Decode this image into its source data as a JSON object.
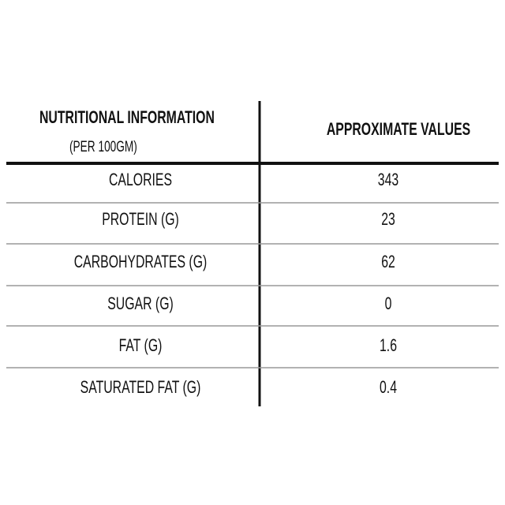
{
  "table": {
    "header": {
      "left": {
        "title": "NUTRITIONAL INFORMATION",
        "subtitle": "(PER 100GM)"
      },
      "right": "APPROXIMATE VALUES"
    },
    "rows": [
      [
        "CALORIES",
        "343"
      ],
      [
        "PROTEIN (G)",
        "23"
      ],
      [
        "CARBOHYDRATES (G)",
        "62"
      ],
      [
        "SUGAR (G)",
        "0"
      ],
      [
        "FAT (G)",
        "1.6"
      ],
      [
        "SATURATED FAT (G)",
        "0.4"
      ]
    ]
  }
}
